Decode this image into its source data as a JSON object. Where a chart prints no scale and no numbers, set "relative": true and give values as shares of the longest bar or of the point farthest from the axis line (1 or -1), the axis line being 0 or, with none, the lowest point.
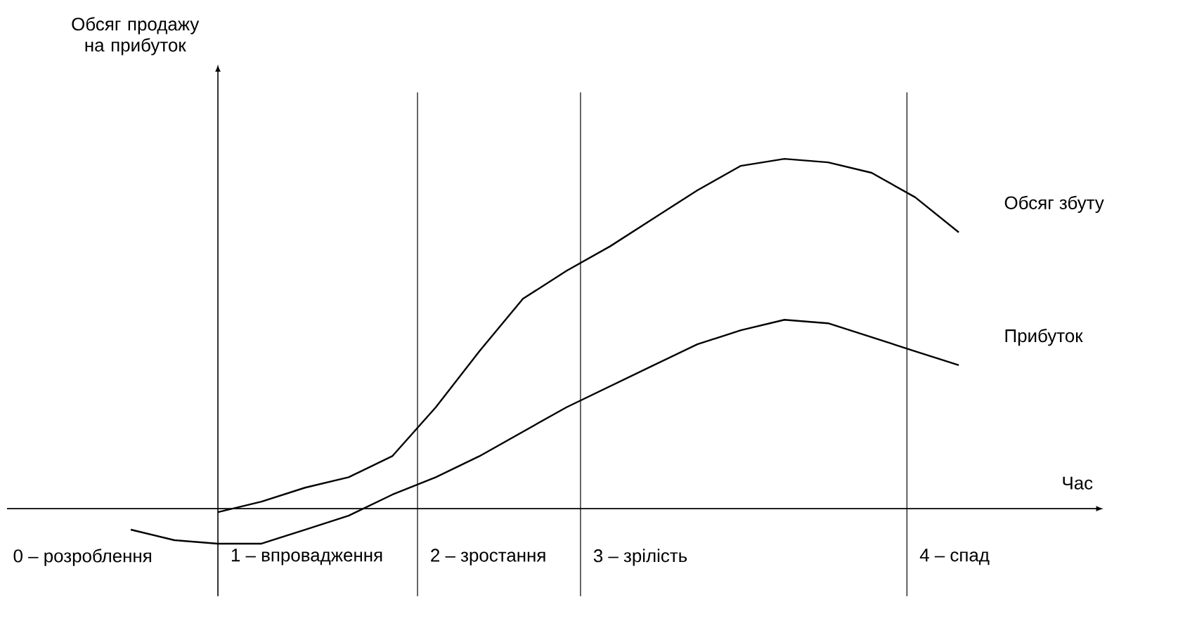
{
  "chart_data": {
    "type": "line",
    "relative": true,
    "xlabel": "Час",
    "categories": [
      null,
      null,
      null,
      null,
      null,
      null,
      null,
      null,
      null,
      null,
      null,
      null,
      null,
      null,
      null,
      null,
      null,
      null,
      null,
      null
    ],
    "series": [
      {
        "name": "Обсяг збуту",
        "color": "#000000",
        "values": [
          null,
          null,
          -0.01,
          0.02,
          0.06,
          0.09,
          0.15,
          0.29,
          0.45,
          0.6,
          0.68,
          0.75,
          0.83,
          0.91,
          0.98,
          1.0,
          0.99,
          0.96,
          0.89,
          0.79
        ]
      },
      {
        "name": "Прибуток",
        "color": "#000000",
        "values": [
          -0.06,
          -0.09,
          -0.1,
          -0.1,
          -0.06,
          -0.02,
          0.04,
          0.09,
          0.15,
          0.22,
          0.29,
          0.35,
          0.41,
          0.47,
          0.51,
          0.54,
          0.53,
          0.49,
          0.45,
          0.41
        ]
      }
    ],
    "annotations": [
      "Обсяг продажу на прибуток",
      "0 – розроблення",
      "1 – впровадження",
      "2 – зростання",
      "3 – зрілість",
      "4 – спад"
    ]
  }
}
